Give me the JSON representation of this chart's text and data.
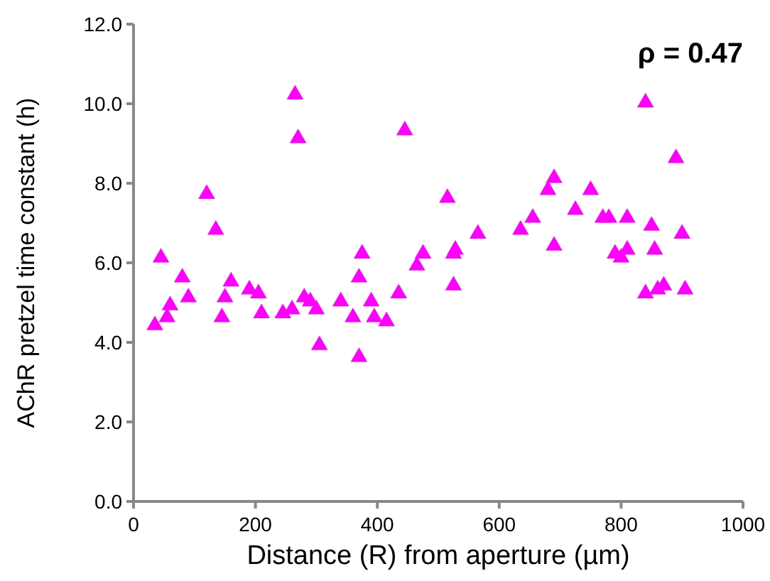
{
  "chart_data": {
    "type": "scatter",
    "xlabel": "Distance (R) from aperture (µm)",
    "ylabel": "AChR pretzel time constant (h)",
    "annotations": [
      "ρ = 0.47"
    ],
    "x": [
      35,
      45,
      55,
      60,
      80,
      90,
      120,
      135,
      145,
      150,
      160,
      190,
      205,
      210,
      245,
      260,
      265,
      270,
      280,
      290,
      300,
      305,
      340,
      360,
      370,
      370,
      375,
      390,
      395,
      415,
      435,
      445,
      465,
      475,
      515,
      525,
      525,
      528,
      565,
      635,
      655,
      680,
      690,
      690,
      725,
      750,
      770,
      780,
      790,
      800,
      810,
      810,
      840,
      840,
      850,
      855,
      860,
      870,
      890,
      900,
      905
    ],
    "series": [
      {
        "color": "#ff00ff",
        "values": [
          4.5,
          6.2,
          4.7,
          5.0,
          5.7,
          5.2,
          7.8,
          6.9,
          4.7,
          5.2,
          5.6,
          5.4,
          5.3,
          4.8,
          4.8,
          4.9,
          10.3,
          9.2,
          5.2,
          5.1,
          4.9,
          4.0,
          5.1,
          4.7,
          3.7,
          5.7,
          6.3,
          5.1,
          4.7,
          4.6,
          5.3,
          9.4,
          6.0,
          6.3,
          7.7,
          5.5,
          6.3,
          6.4,
          6.8,
          6.9,
          7.2,
          7.9,
          8.2,
          6.5,
          7.4,
          7.9,
          7.2,
          7.2,
          6.3,
          6.2,
          6.4,
          7.2,
          5.3,
          10.1,
          7.0,
          6.4,
          5.4,
          5.5,
          8.7,
          6.8,
          5.4
        ]
      }
    ],
    "xlim": [
      0,
      1000
    ],
    "xticks": [
      0,
      200,
      400,
      600,
      800,
      1000
    ],
    "ylim": [
      0,
      12
    ],
    "yticks": [
      {
        "value": 0,
        "label": "0.0"
      },
      {
        "value": 2,
        "label": "2.0"
      },
      {
        "value": 4,
        "label": "4.0"
      },
      {
        "value": 6,
        "label": "6.0"
      },
      {
        "value": 8,
        "label": "8.0"
      },
      {
        "value": 10,
        "label": "10.0"
      },
      {
        "value": 12,
        "label": "12.0"
      }
    ],
    "marker": "triangle",
    "grid": false
  }
}
